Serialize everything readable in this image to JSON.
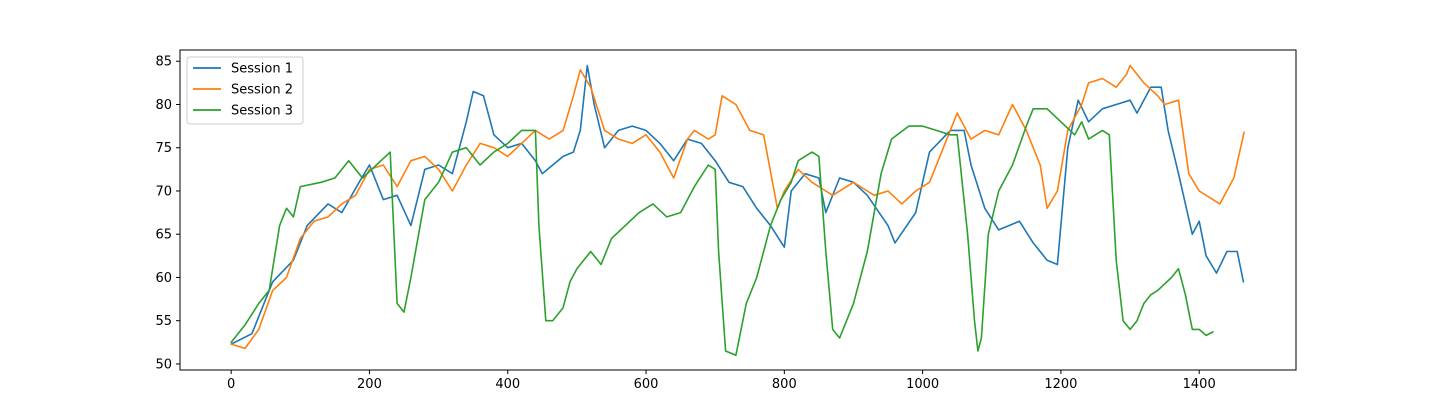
{
  "chart_data": {
    "type": "line",
    "title": "",
    "xlabel": "",
    "ylabel": "",
    "xlim": [
      -74,
      1540
    ],
    "ylim": [
      49.3,
      86.3
    ],
    "xticks": [
      0,
      200,
      400,
      600,
      800,
      1000,
      1200,
      1400
    ],
    "yticks": [
      50,
      55,
      60,
      65,
      70,
      75,
      80,
      85
    ],
    "grid": false,
    "legend": "top-left",
    "series": [
      {
        "name": "Session 1",
        "color": "#1f77b4",
        "points": [
          [
            0,
            52.3
          ],
          [
            30,
            53.5
          ],
          [
            60,
            59.5
          ],
          [
            90,
            62
          ],
          [
            110,
            66
          ],
          [
            140,
            68.5
          ],
          [
            160,
            67.5
          ],
          [
            185,
            71
          ],
          [
            200,
            73
          ],
          [
            220,
            69
          ],
          [
            240,
            69.5
          ],
          [
            260,
            66
          ],
          [
            280,
            72.5
          ],
          [
            300,
            73
          ],
          [
            320,
            72
          ],
          [
            340,
            78
          ],
          [
            350,
            81.5
          ],
          [
            365,
            81
          ],
          [
            380,
            76.5
          ],
          [
            400,
            75
          ],
          [
            420,
            75.5
          ],
          [
            440,
            73.5
          ],
          [
            450,
            72
          ],
          [
            465,
            73
          ],
          [
            480,
            74
          ],
          [
            495,
            74.5
          ],
          [
            505,
            77
          ],
          [
            515,
            84.5
          ],
          [
            525,
            80
          ],
          [
            540,
            75
          ],
          [
            560,
            77
          ],
          [
            580,
            77.5
          ],
          [
            600,
            77
          ],
          [
            620,
            75.5
          ],
          [
            640,
            73.5
          ],
          [
            660,
            76
          ],
          [
            680,
            75.5
          ],
          [
            700,
            73.5
          ],
          [
            720,
            71
          ],
          [
            740,
            70.5
          ],
          [
            760,
            68
          ],
          [
            780,
            66
          ],
          [
            800,
            63.5
          ],
          [
            810,
            70
          ],
          [
            830,
            72
          ],
          [
            850,
            71.5
          ],
          [
            860,
            67.5
          ],
          [
            880,
            71.5
          ],
          [
            900,
            71
          ],
          [
            920,
            69.5
          ],
          [
            950,
            66
          ],
          [
            960,
            64
          ],
          [
            990,
            67.5
          ],
          [
            1010,
            74.5
          ],
          [
            1040,
            77
          ],
          [
            1060,
            77
          ],
          [
            1070,
            73
          ],
          [
            1090,
            68
          ],
          [
            1110,
            65.5
          ],
          [
            1140,
            66.5
          ],
          [
            1160,
            64
          ],
          [
            1180,
            62
          ],
          [
            1195,
            61.5
          ],
          [
            1210,
            75
          ],
          [
            1225,
            80.5
          ],
          [
            1240,
            78
          ],
          [
            1260,
            79.5
          ],
          [
            1280,
            80
          ],
          [
            1300,
            80.5
          ],
          [
            1310,
            79
          ],
          [
            1330,
            82
          ],
          [
            1345,
            82
          ],
          [
            1355,
            77
          ],
          [
            1370,
            72
          ],
          [
            1390,
            65
          ],
          [
            1400,
            66.5
          ],
          [
            1410,
            62.5
          ],
          [
            1425,
            60.5
          ],
          [
            1440,
            63
          ],
          [
            1455,
            63
          ],
          [
            1464,
            59.5
          ]
        ]
      },
      {
        "name": "Session 2",
        "color": "#ff7f0e",
        "points": [
          [
            0,
            52.3
          ],
          [
            20,
            51.8
          ],
          [
            40,
            54
          ],
          [
            60,
            58.5
          ],
          [
            80,
            60
          ],
          [
            100,
            64.5
          ],
          [
            120,
            66.5
          ],
          [
            140,
            67
          ],
          [
            160,
            68.5
          ],
          [
            180,
            69.5
          ],
          [
            200,
            72.5
          ],
          [
            220,
            73
          ],
          [
            240,
            70.5
          ],
          [
            260,
            73.5
          ],
          [
            280,
            74
          ],
          [
            300,
            72.5
          ],
          [
            320,
            70
          ],
          [
            340,
            73
          ],
          [
            360,
            75.5
          ],
          [
            380,
            75
          ],
          [
            400,
            74
          ],
          [
            420,
            75.5
          ],
          [
            440,
            77
          ],
          [
            460,
            76
          ],
          [
            480,
            77
          ],
          [
            495,
            81
          ],
          [
            505,
            84
          ],
          [
            520,
            82
          ],
          [
            540,
            77
          ],
          [
            560,
            76
          ],
          [
            580,
            75.5
          ],
          [
            600,
            76.5
          ],
          [
            620,
            74.5
          ],
          [
            640,
            71.5
          ],
          [
            660,
            76
          ],
          [
            670,
            77
          ],
          [
            690,
            76
          ],
          [
            700,
            76.5
          ],
          [
            710,
            81
          ],
          [
            730,
            80
          ],
          [
            750,
            77
          ],
          [
            770,
            76.5
          ],
          [
            790,
            68
          ],
          [
            800,
            70
          ],
          [
            820,
            72.5
          ],
          [
            840,
            71
          ],
          [
            860,
            70
          ],
          [
            870,
            69.5
          ],
          [
            900,
            71
          ],
          [
            920,
            70
          ],
          [
            930,
            69.5
          ],
          [
            950,
            70
          ],
          [
            970,
            68.5
          ],
          [
            990,
            70
          ],
          [
            1010,
            71
          ],
          [
            1030,
            75
          ],
          [
            1050,
            79
          ],
          [
            1070,
            76
          ],
          [
            1090,
            77
          ],
          [
            1110,
            76.5
          ],
          [
            1130,
            80
          ],
          [
            1150,
            77
          ],
          [
            1170,
            73
          ],
          [
            1180,
            68
          ],
          [
            1195,
            70
          ],
          [
            1210,
            77
          ],
          [
            1230,
            80
          ],
          [
            1240,
            82.5
          ],
          [
            1260,
            83
          ],
          [
            1280,
            82
          ],
          [
            1295,
            83.5
          ],
          [
            1300,
            84.5
          ],
          [
            1320,
            82.5
          ],
          [
            1340,
            81
          ],
          [
            1350,
            80
          ],
          [
            1370,
            80.5
          ],
          [
            1385,
            72
          ],
          [
            1400,
            70
          ],
          [
            1430,
            68.5
          ],
          [
            1450,
            71.5
          ],
          [
            1465,
            76.8
          ]
        ]
      },
      {
        "name": "Session 3",
        "color": "#2ca02c",
        "points": [
          [
            0,
            52.5
          ],
          [
            20,
            54.5
          ],
          [
            40,
            57
          ],
          [
            55,
            58.5
          ],
          [
            70,
            66
          ],
          [
            80,
            68
          ],
          [
            90,
            67
          ],
          [
            100,
            70.5
          ],
          [
            130,
            71
          ],
          [
            150,
            71.5
          ],
          [
            170,
            73.5
          ],
          [
            190,
            71.5
          ],
          [
            210,
            73
          ],
          [
            230,
            74.5
          ],
          [
            240,
            57
          ],
          [
            250,
            56
          ],
          [
            260,
            60
          ],
          [
            280,
            69
          ],
          [
            300,
            71
          ],
          [
            320,
            74.5
          ],
          [
            340,
            75
          ],
          [
            360,
            73
          ],
          [
            380,
            74.5
          ],
          [
            400,
            75.5
          ],
          [
            420,
            77
          ],
          [
            440,
            77
          ],
          [
            445,
            66
          ],
          [
            455,
            55
          ],
          [
            465,
            55
          ],
          [
            480,
            56.5
          ],
          [
            490,
            59.5
          ],
          [
            500,
            61
          ],
          [
            520,
            63
          ],
          [
            535,
            61.5
          ],
          [
            550,
            64.5
          ],
          [
            570,
            66
          ],
          [
            590,
            67.5
          ],
          [
            610,
            68.5
          ],
          [
            630,
            67
          ],
          [
            650,
            67.5
          ],
          [
            670,
            70.5
          ],
          [
            690,
            73
          ],
          [
            700,
            72.5
          ],
          [
            705,
            63
          ],
          [
            715,
            51.5
          ],
          [
            730,
            51
          ],
          [
            745,
            57
          ],
          [
            760,
            60
          ],
          [
            780,
            66
          ],
          [
            795,
            69
          ],
          [
            810,
            71
          ],
          [
            820,
            73.5
          ],
          [
            840,
            74.5
          ],
          [
            850,
            74
          ],
          [
            860,
            63
          ],
          [
            870,
            54
          ],
          [
            880,
            53
          ],
          [
            890,
            55
          ],
          [
            900,
            57
          ],
          [
            920,
            63
          ],
          [
            940,
            72
          ],
          [
            955,
            76
          ],
          [
            980,
            77.5
          ],
          [
            1000,
            77.5
          ],
          [
            1020,
            77
          ],
          [
            1040,
            76.5
          ],
          [
            1050,
            76.5
          ],
          [
            1065,
            65
          ],
          [
            1075,
            55
          ],
          [
            1080,
            51.5
          ],
          [
            1085,
            53
          ],
          [
            1095,
            65
          ],
          [
            1110,
            70
          ],
          [
            1130,
            73
          ],
          [
            1150,
            77.5
          ],
          [
            1160,
            79.5
          ],
          [
            1180,
            79.5
          ],
          [
            1200,
            78
          ],
          [
            1220,
            76.5
          ],
          [
            1230,
            78
          ],
          [
            1240,
            76
          ],
          [
            1260,
            77
          ],
          [
            1270,
            76.5
          ],
          [
            1280,
            62
          ],
          [
            1290,
            55
          ],
          [
            1300,
            54
          ],
          [
            1310,
            55
          ],
          [
            1320,
            57
          ],
          [
            1330,
            58
          ],
          [
            1340,
            58.5
          ],
          [
            1360,
            60
          ],
          [
            1370,
            61
          ],
          [
            1380,
            58
          ],
          [
            1390,
            54
          ],
          [
            1400,
            54
          ],
          [
            1410,
            53.3
          ],
          [
            1420,
            53.7
          ]
        ]
      }
    ]
  }
}
